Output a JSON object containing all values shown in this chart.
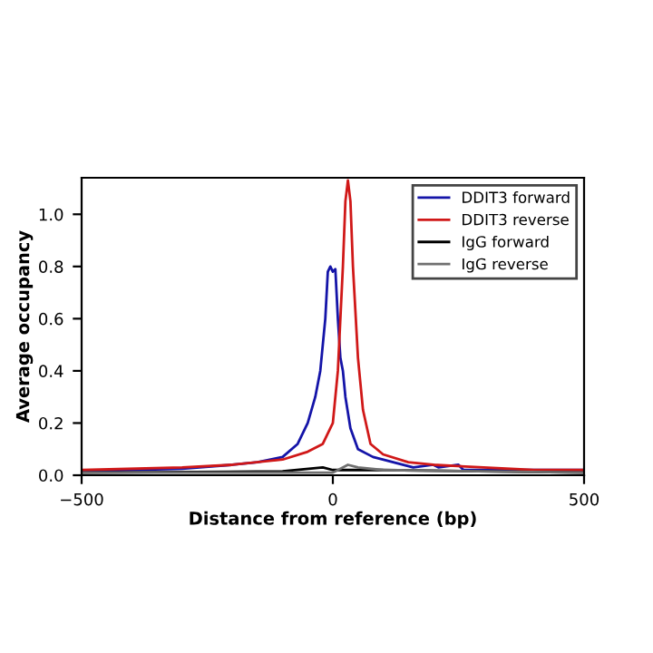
{
  "chart_data": {
    "type": "line",
    "xlabel": "Distance from reference (bp)",
    "ylabel": "Average occupancy",
    "xlim": [
      -500,
      500
    ],
    "xticks": [
      {
        "value": -500,
        "label": "−500"
      },
      0,
      500
    ],
    "ylim": [
      0,
      1.14
    ],
    "yticks": [
      {
        "value": 0,
        "label": "0.0"
      },
      0.2,
      0.4,
      0.6,
      0.8,
      {
        "value": 1,
        "label": "1.0"
      }
    ],
    "legend": "top right",
    "grid": false,
    "series": [
      {
        "name": "DDIT3 forward",
        "color": "#1414a8",
        "x": [
          -500,
          -300,
          -200,
          -150,
          -100,
          -70,
          -50,
          -35,
          -25,
          -15,
          -10,
          -5,
          0,
          5,
          10,
          15,
          20,
          25,
          35,
          50,
          80,
          120,
          160,
          200,
          210,
          250,
          260,
          300,
          500
        ],
        "values": [
          0.015,
          0.025,
          0.04,
          0.05,
          0.07,
          0.12,
          0.2,
          0.3,
          0.4,
          0.6,
          0.78,
          0.8,
          0.78,
          0.79,
          0.6,
          0.45,
          0.4,
          0.3,
          0.18,
          0.1,
          0.07,
          0.05,
          0.03,
          0.04,
          0.03,
          0.04,
          0.02,
          0.02,
          0.02
        ]
      },
      {
        "name": "DDIT3 reverse",
        "color": "#d01818",
        "x": [
          -500,
          -300,
          -200,
          -100,
          -50,
          -20,
          0,
          10,
          20,
          25,
          30,
          35,
          40,
          50,
          60,
          75,
          100,
          150,
          200,
          300,
          400,
          500
        ],
        "values": [
          0.02,
          0.03,
          0.04,
          0.06,
          0.09,
          0.12,
          0.2,
          0.4,
          0.8,
          1.05,
          1.13,
          1.05,
          0.8,
          0.45,
          0.25,
          0.12,
          0.08,
          0.05,
          0.04,
          0.03,
          0.02,
          0.02
        ]
      },
      {
        "name": "IgG forward",
        "color": "#000000",
        "x": [
          -500,
          -100,
          -20,
          0,
          50,
          100,
          500
        ],
        "values": [
          0.01,
          0.015,
          0.03,
          0.02,
          0.02,
          0.02,
          0.01
        ]
      },
      {
        "name": "IgG reverse",
        "color": "#707070",
        "x": [
          -500,
          0,
          30,
          50,
          100,
          500
        ],
        "values": [
          0.01,
          0.01,
          0.04,
          0.03,
          0.02,
          0.01
        ]
      }
    ]
  }
}
